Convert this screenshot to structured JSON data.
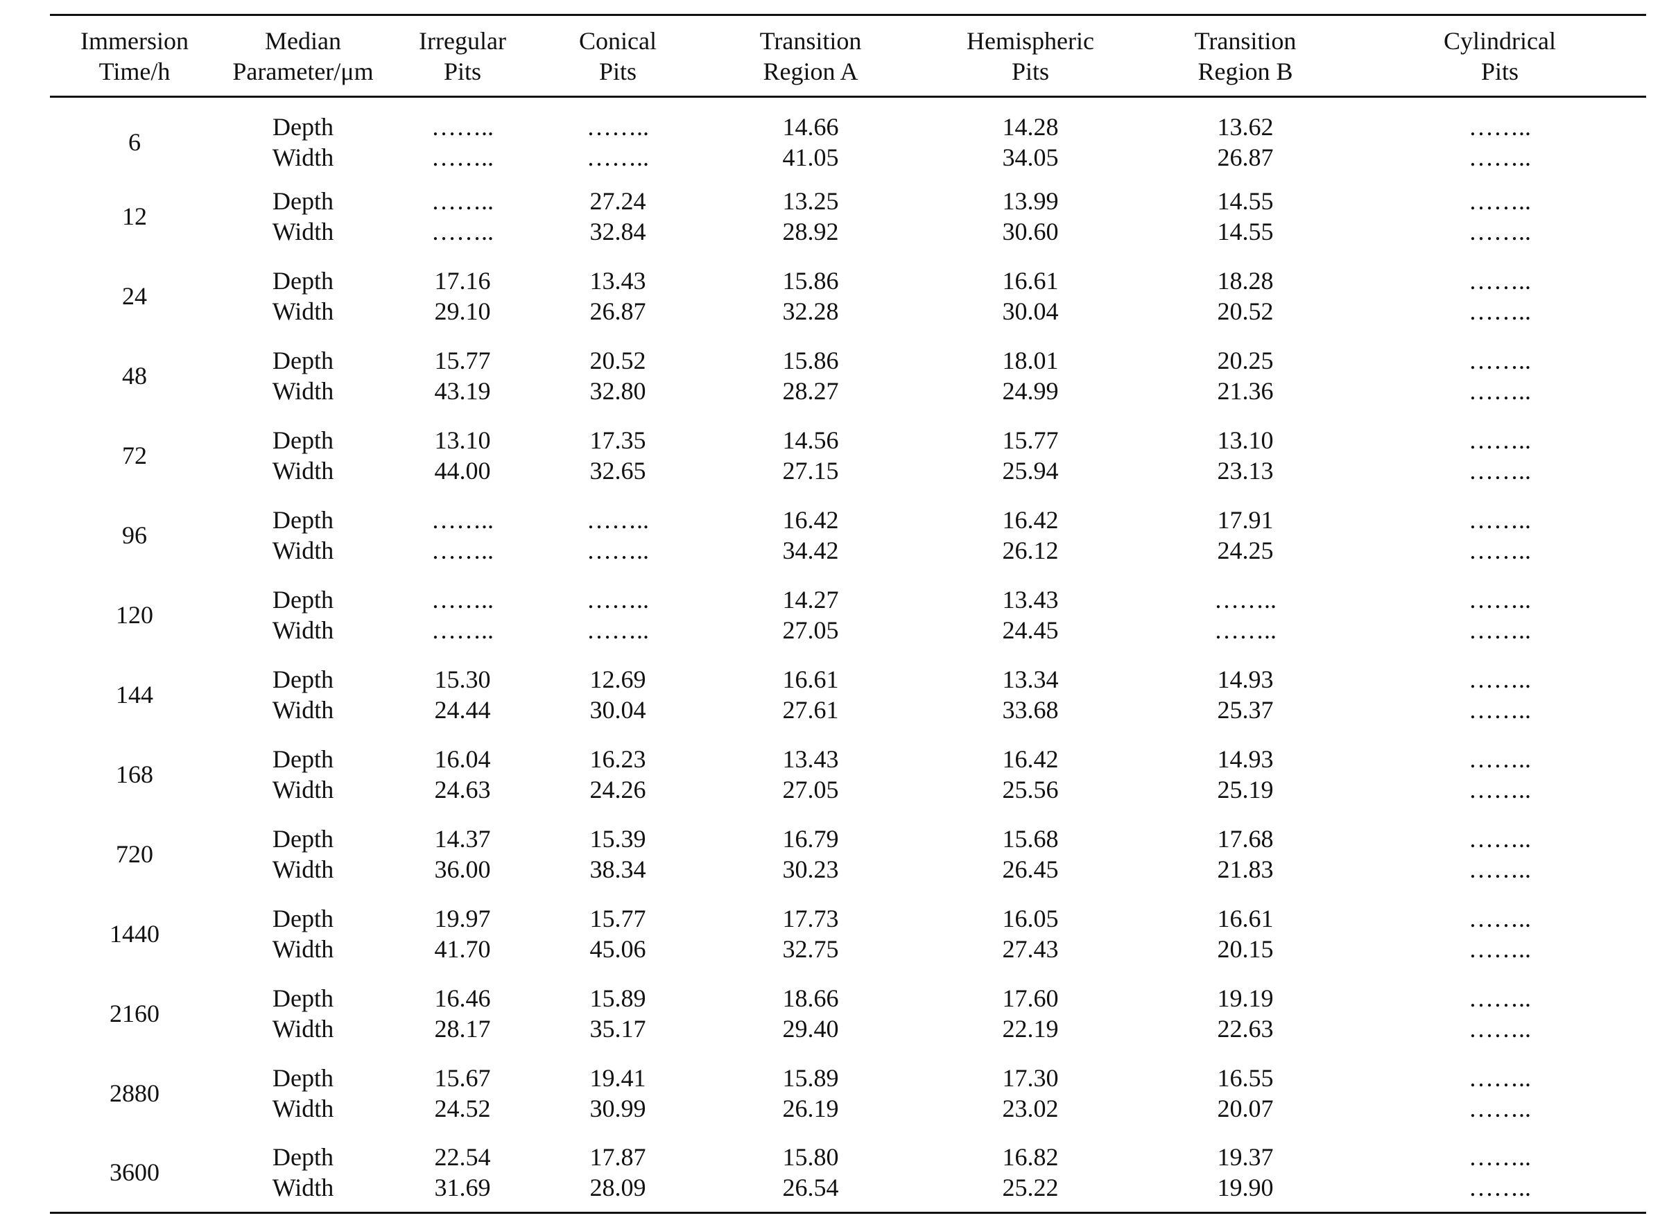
{
  "table": {
    "headers": [
      [
        "Immersion",
        "Time/h"
      ],
      [
        "Median",
        "Parameter/μm"
      ],
      [
        "Irregular",
        "Pits"
      ],
      [
        "Conical",
        "Pits"
      ],
      [
        "Transition",
        "Region A"
      ],
      [
        "Hemispheric",
        "Pits"
      ],
      [
        "Transition",
        "Region B"
      ],
      [
        "Cylindrical",
        "Pits"
      ]
    ],
    "param_labels": [
      "Depth",
      "Width"
    ],
    "rows": [
      {
        "time": "6",
        "depth": [
          "……..",
          "……..",
          "14.66",
          "14.28",
          "13.62",
          "…….."
        ],
        "width": [
          "……..",
          "……..",
          "41.05",
          "34.05",
          "26.87",
          "…….."
        ]
      },
      {
        "time": "12",
        "depth": [
          "……..",
          "27.24",
          "13.25",
          "13.99",
          "14.55",
          "…….."
        ],
        "width": [
          "……..",
          "32.84",
          "28.92",
          "30.60",
          "14.55",
          "…….."
        ]
      },
      {
        "time": "24",
        "depth": [
          "17.16",
          "13.43",
          "15.86",
          "16.61",
          "18.28",
          "…….."
        ],
        "width": [
          "29.10",
          "26.87",
          "32.28",
          "30.04",
          "20.52",
          "…….."
        ]
      },
      {
        "time": "48",
        "depth": [
          "15.77",
          "20.52",
          "15.86",
          "18.01",
          "20.25",
          "…….."
        ],
        "width": [
          "43.19",
          "32.80",
          "28.27",
          "24.99",
          "21.36",
          "…….."
        ]
      },
      {
        "time": "72",
        "depth": [
          "13.10",
          "17.35",
          "14.56",
          "15.77",
          "13.10",
          "…….."
        ],
        "width": [
          "44.00",
          "32.65",
          "27.15",
          "25.94",
          "23.13",
          "…….."
        ]
      },
      {
        "time": "96",
        "depth": [
          "……..",
          "……..",
          "16.42",
          "16.42",
          "17.91",
          "…….."
        ],
        "width": [
          "……..",
          "……..",
          "34.42",
          "26.12",
          "24.25",
          "…….."
        ]
      },
      {
        "time": "120",
        "depth": [
          "……..",
          "……..",
          "14.27",
          "13.43",
          "……..",
          "…….."
        ],
        "width": [
          "……..",
          "……..",
          "27.05",
          "24.45",
          "……..",
          "…….."
        ]
      },
      {
        "time": "144",
        "depth": [
          "15.30",
          "12.69",
          "16.61",
          "13.34",
          "14.93",
          "…….."
        ],
        "width": [
          "24.44",
          "30.04",
          "27.61",
          "33.68",
          "25.37",
          "…….."
        ]
      },
      {
        "time": "168",
        "depth": [
          "16.04",
          "16.23",
          "13.43",
          "16.42",
          "14.93",
          "…….."
        ],
        "width": [
          "24.63",
          "24.26",
          "27.05",
          "25.56",
          "25.19",
          "…….."
        ]
      },
      {
        "time": "720",
        "depth": [
          "14.37",
          "15.39",
          "16.79",
          "15.68",
          "17.68",
          "…….."
        ],
        "width": [
          "36.00",
          "38.34",
          "30.23",
          "26.45",
          "21.83",
          "…….."
        ]
      },
      {
        "time": "1440",
        "depth": [
          "19.97",
          "15.77",
          "17.73",
          "16.05",
          "16.61",
          "…….."
        ],
        "width": [
          "41.70",
          "45.06",
          "32.75",
          "27.43",
          "20.15",
          "…….."
        ]
      },
      {
        "time": "2160",
        "depth": [
          "16.46",
          "15.89",
          "18.66",
          "17.60",
          "19.19",
          "…….."
        ],
        "width": [
          "28.17",
          "35.17",
          "29.40",
          "22.19",
          "22.63",
          "…….."
        ]
      },
      {
        "time": "2880",
        "depth": [
          "15.67",
          "19.41",
          "15.89",
          "17.30",
          "16.55",
          "…….."
        ],
        "width": [
          "24.52",
          "30.99",
          "26.19",
          "23.02",
          "20.07",
          "…….."
        ]
      },
      {
        "time": "3600",
        "depth": [
          "22.54",
          "17.87",
          "15.80",
          "16.82",
          "19.37",
          "…….."
        ],
        "width": [
          "31.69",
          "28.09",
          "26.54",
          "25.22",
          "19.90",
          "…….."
        ]
      }
    ]
  }
}
